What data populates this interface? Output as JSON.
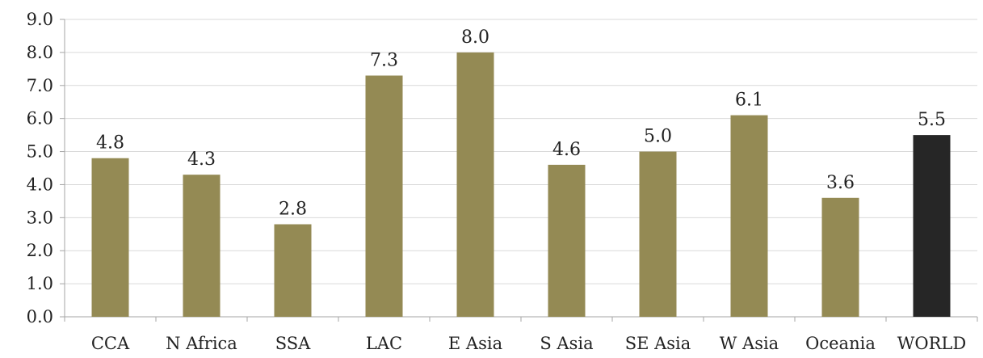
{
  "chart_data": {
    "type": "bar",
    "title": "",
    "xlabel": "",
    "ylabel": "",
    "categories": [
      "CCA",
      "N Africa",
      "SSA",
      "LAC",
      "E Asia",
      "S Asia",
      "SE Asia",
      "W Asia",
      "Oceania",
      "WORLD"
    ],
    "values": [
      4.8,
      4.3,
      2.8,
      7.3,
      8.0,
      4.6,
      5.0,
      6.1,
      3.6,
      5.5
    ],
    "data_labels": [
      "4.8",
      "4.3",
      "2.8",
      "7.3",
      "8.0",
      "4.6",
      "5.0",
      "6.1",
      "3.6",
      "5.5"
    ],
    "ylim": [
      0,
      9
    ],
    "yticks": [
      "0.0",
      "1.0",
      "2.0",
      "3.0",
      "4.0",
      "5.0",
      "6.0",
      "7.0",
      "8.0",
      "9.0"
    ],
    "grid": "horizontal",
    "legend": "none",
    "colors": {
      "bar": "#948a54",
      "highlight_bar": "#262626",
      "grid": "#d9d9d9",
      "axis": "#a6a6a6"
    },
    "highlight_category": "WORLD"
  }
}
